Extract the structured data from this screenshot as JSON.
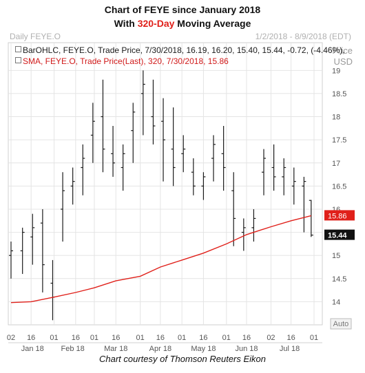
{
  "header": {
    "title_line1": "Chart of FEYE since January 2018",
    "title_line2_pre": "With ",
    "title_line2_highlight": "320-Day",
    "title_line2_post": " Moving Average",
    "left_label": "Daily FEYE.O",
    "right_label": "1/2/2018 - 8/9/2018 (EDT)",
    "unit_price": "Price",
    "unit_usd": "USD"
  },
  "legend": {
    "ohlc": "BarOHLC, FEYE.O, Trade Price, 7/30/2018, 16.19, 16.20, 15.40, 15.44, -0.72, (-4.46%),",
    "sma": "SMA, FEYE.O, Trade Price(Last), 320, 7/30/2018, 15.86"
  },
  "caption": "Chart courtesy of Thomson Reuters Eikon",
  "colors": {
    "price_bars": "#1a1a1a",
    "sma_line": "#e0201a",
    "title_highlight": "#e0201a",
    "grid": "#e4e4e4"
  },
  "chart_data": {
    "type": "line",
    "ylim": [
      13.5,
      19.6
    ],
    "y_ticks": [
      "19",
      "18.5",
      "18",
      "17.5",
      "17",
      "16.5",
      "16",
      "15.5",
      "15",
      "14.5",
      "14"
    ],
    "y_axis_button": "Auto",
    "x_ticks": [
      "02",
      "16",
      "01",
      "16",
      "01",
      "16",
      "01",
      "16",
      "01",
      "16",
      "01",
      "16",
      "02",
      "16",
      "01"
    ],
    "month_labels": [
      "Jan 18",
      "Feb 18",
      "Mar 18",
      "Apr 18",
      "May 18",
      "Jun 18",
      "Jul 18"
    ],
    "tags": {
      "sma_last": "15.86",
      "price_last": "15.44"
    },
    "series": [
      {
        "name": "BarOHLC, FEYE.O, Trade Price",
        "style": "ohlc",
        "dates": [
          "1/2",
          "1/10",
          "1/17",
          "1/24",
          "1/31",
          "2/7",
          "2/14",
          "2/21",
          "2/28",
          "3/7",
          "3/14",
          "3/21",
          "3/28",
          "4/4",
          "4/11",
          "4/18",
          "4/25",
          "5/2",
          "5/9",
          "5/16",
          "5/23",
          "5/30",
          "6/6",
          "6/13",
          "6/20",
          "6/27",
          "7/4",
          "7/11",
          "7/18",
          "7/25",
          "7/30"
        ],
        "high": [
          15.3,
          15.6,
          15.9,
          16.0,
          14.9,
          16.8,
          16.9,
          17.4,
          18.3,
          18.8,
          17.8,
          17.4,
          18.3,
          19.0,
          18.8,
          18.4,
          18.2,
          17.6,
          17.1,
          16.8,
          17.6,
          17.8,
          16.8,
          15.8,
          16.0,
          17.3,
          17.4,
          17.1,
          16.9,
          16.7,
          16.2
        ],
        "low": [
          14.5,
          14.6,
          14.8,
          14.2,
          13.6,
          15.3,
          16.1,
          16.3,
          17.0,
          16.8,
          16.7,
          16.4,
          17.0,
          17.6,
          17.4,
          16.6,
          16.5,
          16.8,
          16.3,
          16.2,
          16.6,
          16.4,
          15.2,
          15.1,
          15.3,
          16.3,
          16.4,
          16.3,
          16.1,
          15.5,
          15.4
        ],
        "open": [
          15.0,
          15.1,
          15.4,
          15.7,
          14.4,
          16.0,
          16.5,
          16.9,
          17.6,
          18.0,
          17.2,
          16.9,
          17.7,
          18.5,
          18.0,
          17.9,
          17.3,
          17.2,
          16.8,
          16.5,
          17.1,
          17.2,
          16.4,
          15.5,
          15.6,
          16.8,
          16.9,
          16.7,
          16.5,
          16.5,
          16.19
        ],
        "close": [
          15.1,
          15.5,
          15.6,
          14.8,
          14.1,
          16.4,
          16.6,
          17.1,
          17.9,
          17.3,
          17.0,
          17.2,
          18.1,
          18.7,
          17.8,
          17.5,
          16.9,
          17.3,
          16.5,
          16.7,
          17.4,
          16.9,
          15.8,
          15.6,
          15.8,
          17.1,
          16.7,
          16.9,
          16.6,
          16.6,
          15.44
        ]
      },
      {
        "name": "SMA, FEYE.O, Trade Price(Last), 320",
        "style": "line",
        "dates": [
          "1/2",
          "1/16",
          "2/1",
          "2/16",
          "3/1",
          "3/16",
          "4/2",
          "4/16",
          "5/1",
          "5/16",
          "6/1",
          "6/15",
          "7/2",
          "7/16",
          "7/30"
        ],
        "values": [
          13.98,
          14.0,
          14.1,
          14.2,
          14.3,
          14.45,
          14.55,
          14.75,
          14.9,
          15.05,
          15.25,
          15.45,
          15.62,
          15.75,
          15.86
        ]
      }
    ]
  }
}
